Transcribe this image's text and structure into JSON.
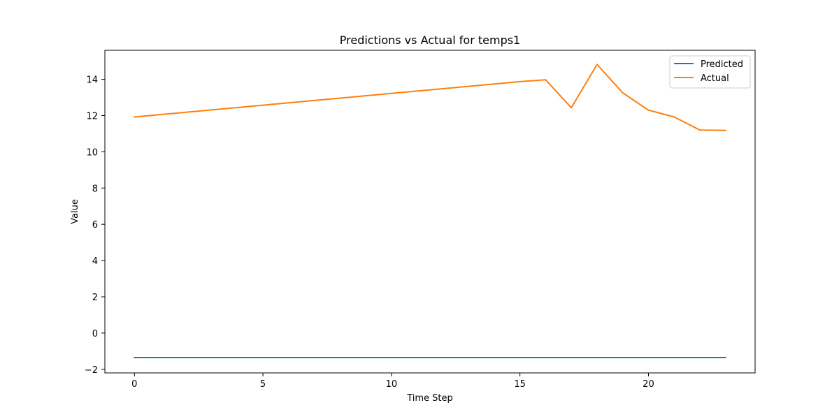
{
  "chart_data": {
    "type": "line",
    "title": "Predictions vs Actual for temps1",
    "xlabel": "Time Step",
    "ylabel": "Value",
    "xlim": [
      -1.15,
      24.15
    ],
    "ylim": [
      -2.2,
      15.6
    ],
    "xticks": [
      0,
      5,
      10,
      15,
      20
    ],
    "yticks": [
      -2,
      0,
      2,
      4,
      6,
      8,
      10,
      12,
      14
    ],
    "grid": false,
    "legend_position": "top-right",
    "x": [
      0,
      1,
      2,
      3,
      4,
      5,
      6,
      7,
      8,
      9,
      10,
      11,
      12,
      13,
      14,
      15,
      16,
      17,
      18,
      19,
      20,
      21,
      22,
      23
    ],
    "series": [
      {
        "name": "Predicted",
        "color": "#1f77b4",
        "values": [
          -1.35,
          -1.35,
          -1.35,
          -1.35,
          -1.35,
          -1.35,
          -1.35,
          -1.35,
          -1.35,
          -1.35,
          -1.35,
          -1.35,
          -1.35,
          -1.35,
          -1.35,
          -1.35,
          -1.35,
          -1.35,
          -1.35,
          -1.35,
          -1.35,
          -1.35,
          -1.35,
          -1.35
        ]
      },
      {
        "name": "Actual",
        "color": "#ff7f0e",
        "values": [
          11.92,
          12.05,
          12.18,
          12.31,
          12.44,
          12.57,
          12.7,
          12.83,
          12.96,
          13.09,
          13.22,
          13.35,
          13.48,
          13.61,
          13.74,
          13.87,
          13.97,
          12.43,
          14.82,
          13.25,
          12.3,
          11.92,
          11.2,
          11.18
        ]
      }
    ]
  }
}
